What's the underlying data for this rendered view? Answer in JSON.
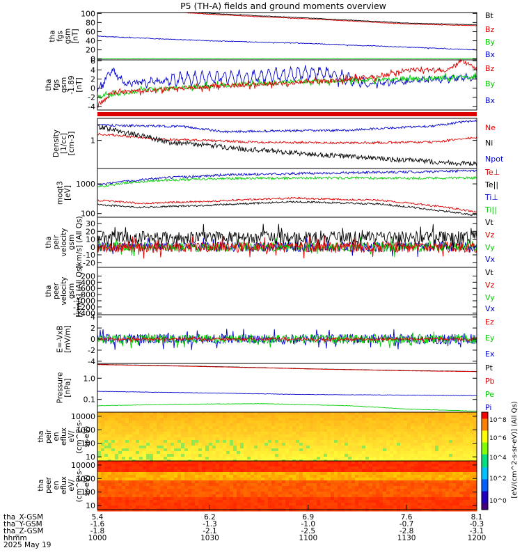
{
  "title": "P5 (TH-A) fields and ground moments overview",
  "colors": {
    "black": "#000000",
    "red": "#dd0000",
    "green": "#00cc00",
    "blue": "#0000cc"
  },
  "chart_data": {
    "type": "line",
    "panels": [
      {
        "id": "fgs",
        "ylabel": [
          "tha",
          "fgs",
          "gsm",
          "[nT]"
        ],
        "ylim": [
          -2,
          102
        ],
        "yticks": [
          0,
          20,
          40,
          60,
          80,
          100
        ],
        "ytick_labels": [
          "0",
          "20",
          "40",
          "60",
          "80",
          "100"
        ],
        "legend": [
          "Bt",
          "Bz",
          "By",
          "Bx"
        ],
        "series": [
          {
            "name": "Bt",
            "color": "black",
            "points": [
              [
                5.4,
                118
              ],
              [
                6.2,
                100
              ],
              [
                6.9,
                90
              ],
              [
                7.6,
                79
              ],
              [
                8.1,
                75
              ]
            ],
            "noise": 0.6
          },
          {
            "name": "Bz",
            "color": "red",
            "points": [
              [
                5.4,
                116
              ],
              [
                6.2,
                98
              ],
              [
                6.9,
                88
              ],
              [
                7.6,
                77
              ],
              [
                8.1,
                73
              ]
            ],
            "noise": 0.6
          },
          {
            "name": "By",
            "color": "blue",
            "points": [
              [
                5.4,
                50
              ],
              [
                5.7,
                46
              ],
              [
                6.2,
                40
              ],
              [
                6.9,
                34
              ],
              [
                7.6,
                26
              ],
              [
                8.1,
                20
              ]
            ],
            "noise": 0.8
          },
          {
            "name": "Bx",
            "color": "green",
            "points": [
              [
                5.4,
                0.5
              ],
              [
                8.1,
                1
              ]
            ],
            "noise": 0.3
          }
        ]
      },
      {
        "id": "fgm",
        "ylabel": [
          "tha",
          "fgs",
          "gsm",
          "-1.89",
          "[nT]"
        ],
        "ylim": [
          -4.8,
          6.2
        ],
        "yticks": [
          -4,
          -2,
          0,
          2,
          4,
          6
        ],
        "ytick_labels": [
          "-4",
          "-2",
          "0",
          "2",
          "4",
          "6"
        ],
        "legend": [
          "Bz",
          "By",
          "Bx"
        ],
        "series": [
          {
            "name": "Bx",
            "color": "blue",
            "points": [
              [
                5.4,
                -1
              ],
              [
                5.5,
                4
              ],
              [
                5.6,
                1
              ],
              [
                6.0,
                2
              ],
              [
                6.5,
                2.5
              ],
              [
                7.0,
                3.5
              ],
              [
                7.3,
                1
              ],
              [
                7.6,
                1.5
              ],
              [
                8.1,
                2.5
              ]
            ],
            "noise": 0.6,
            "wave": 1.2
          },
          {
            "name": "By",
            "color": "green",
            "points": [
              [
                5.4,
                -2
              ],
              [
                5.7,
                -0.5
              ],
              [
                6.2,
                0.5
              ],
              [
                6.9,
                1.5
              ],
              [
                7.6,
                2
              ],
              [
                8.1,
                2.5
              ]
            ],
            "noise": 0.5
          },
          {
            "name": "Bz",
            "color": "red",
            "points": [
              [
                5.4,
                -4
              ],
              [
                5.5,
                -1
              ],
              [
                6.0,
                0
              ],
              [
                6.6,
                1
              ],
              [
                7.0,
                1.5
              ],
              [
                7.4,
                2.5
              ],
              [
                7.6,
                4
              ],
              [
                7.9,
                4
              ],
              [
                8.0,
                6
              ],
              [
                8.1,
                4
              ]
            ],
            "noise": 0.5
          }
        ]
      },
      {
        "id": "density",
        "ylabel": [
          "Density",
          "[1/cc]",
          "[cm-3]"
        ],
        "ylim": [
          0.17,
          4.0
        ],
        "log": true,
        "yticks": [
          1
        ],
        "ytick_labels": [
          "1"
        ],
        "legend": [
          "Ne",
          "Ni",
          "Npot"
        ],
        "series": [
          {
            "name": "Npot",
            "color": "blue",
            "points": [
              [
                5.4,
                2.6
              ],
              [
                6.0,
                2.4
              ],
              [
                6.3,
                1.7
              ],
              [
                6.6,
                1.8
              ],
              [
                7.2,
                1.9
              ],
              [
                7.8,
                2.5
              ],
              [
                8.1,
                3.5
              ]
            ],
            "noise": 0.03
          },
          {
            "name": "Ni",
            "color": "red",
            "points": [
              [
                5.4,
                1.5
              ],
              [
                5.8,
                1.1
              ],
              [
                6.5,
                0.9
              ],
              [
                7.2,
                0.85
              ],
              [
                7.8,
                0.9
              ],
              [
                8.1,
                1.2
              ]
            ],
            "noise": 0.03
          },
          {
            "name": "Ne",
            "color": "black",
            "points": [
              [
                5.4,
                2.4
              ],
              [
                5.6,
                1.6
              ],
              [
                5.9,
                0.9
              ],
              [
                6.4,
                0.6
              ],
              [
                6.9,
                0.42
              ],
              [
                7.5,
                0.3
              ],
              [
                8.1,
                0.22
              ]
            ],
            "noise": 0.07
          }
        ]
      },
      {
        "id": "temp",
        "ylabel": [
          "moqt3",
          "[eV]"
        ],
        "ylim": [
          75,
          3300
        ],
        "log": true,
        "yticks": [
          100,
          1000
        ],
        "ytick_labels": [
          "100",
          "1000"
        ],
        "legend": [
          "Te⊥",
          "Te||",
          "Ti⊥",
          "Ti||"
        ],
        "series": [
          {
            "name": "Ti⊥",
            "color": "blue",
            "points": [
              [
                5.4,
                900
              ],
              [
                5.8,
                1500
              ],
              [
                6.3,
                2000
              ],
              [
                7.0,
                2300
              ],
              [
                7.6,
                2500
              ],
              [
                8.1,
                2800
              ]
            ],
            "noise": 0.04
          },
          {
            "name": "Ti||",
            "color": "green",
            "points": [
              [
                5.4,
                800
              ],
              [
                5.8,
                1300
              ],
              [
                6.3,
                1500
              ],
              [
                7.0,
                1600
              ],
              [
                7.6,
                1550
              ],
              [
                8.1,
                1600
              ]
            ],
            "noise": 0.04
          },
          {
            "name": "Te⊥",
            "color": "red",
            "points": [
              [
                5.4,
                280
              ],
              [
                5.7,
                220
              ],
              [
                6.2,
                260
              ],
              [
                6.8,
                330
              ],
              [
                7.4,
                280
              ],
              [
                7.8,
                180
              ],
              [
                8.1,
                110
              ]
            ],
            "noise": 0.03
          },
          {
            "name": "Te||",
            "color": "black",
            "points": [
              [
                5.4,
                200
              ],
              [
                5.7,
                160
              ],
              [
                6.2,
                190
              ],
              [
                6.8,
                250
              ],
              [
                7.4,
                210
              ],
              [
                7.8,
                130
              ],
              [
                8.1,
                85
              ]
            ],
            "noise": 0.03
          }
        ]
      },
      {
        "id": "peir",
        "ylabel": [
          "tha",
          "peir",
          "velocity",
          "gsm",
          "[km/s] (All Qs)"
        ],
        "ylim": [
          -26,
          38
        ],
        "yticks": [
          -20,
          -10,
          0,
          10,
          20,
          30
        ],
        "ytick_labels": [
          "-20",
          "-10",
          "0",
          "10",
          "20",
          "30"
        ],
        "legend": [
          "Vt",
          "Vz",
          "Vy",
          "Vx"
        ],
        "series": [
          {
            "name": "Vx",
            "color": "blue",
            "points": [
              [
                5.4,
                0
              ],
              [
                8.1,
                0
              ]
            ],
            "noise": 6
          },
          {
            "name": "Vy",
            "color": "green",
            "points": [
              [
                5.4,
                0
              ],
              [
                8.1,
                0
              ]
            ],
            "noise": 6
          },
          {
            "name": "Vt",
            "color": "black",
            "points": [
              [
                5.4,
                12
              ],
              [
                8.1,
                12
              ]
            ],
            "noise": 8
          },
          {
            "name": "Vz",
            "color": "red",
            "points": [
              [
                5.4,
                0
              ],
              [
                8.1,
                0
              ]
            ],
            "noise": 7
          }
        ]
      },
      {
        "id": "peer",
        "ylabel": [
          "tha",
          "peer",
          "velocity",
          "gsm",
          "[km/s] (All Qs)"
        ],
        "ylim": [
          -1450,
          80
        ],
        "yticks": [
          -1400,
          -1200,
          -1000,
          -800,
          -600,
          -400,
          -200
        ],
        "ytick_labels": [
          "-1400",
          "-1200",
          "-1000",
          "-800",
          "-600",
          "-400",
          "-200"
        ],
        "legend": [
          "Vt",
          "Vz",
          "Vy",
          "Vx"
        ],
        "series": []
      },
      {
        "id": "efield",
        "ylabel": [
          "E=-VxB",
          "[mV/m]"
        ],
        "ylim": [
          -4.4,
          4.4
        ],
        "yticks": [
          -4,
          -2,
          0,
          2,
          4
        ],
        "ytick_labels": [
          "-4",
          "-2",
          "0",
          "2",
          "4"
        ],
        "legend": [
          "Ez",
          "Ey",
          "Ex"
        ],
        "series": [
          {
            "name": "Ex",
            "color": "blue",
            "points": [
              [
                5.4,
                0
              ],
              [
                8.1,
                0
              ]
            ],
            "noise": 0.9
          },
          {
            "name": "Ey",
            "color": "green",
            "points": [
              [
                5.4,
                0
              ],
              [
                8.1,
                0
              ]
            ],
            "noise": 0.8
          },
          {
            "name": "Ez",
            "color": "red",
            "points": [
              [
                5.4,
                0
              ],
              [
                8.1,
                0
              ]
            ],
            "noise": 0.25
          }
        ]
      },
      {
        "id": "pressure",
        "ylabel": [
          "Pressure",
          "[nPa]"
        ],
        "ylim": [
          0.025,
          5.0
        ],
        "log": true,
        "yticks": [
          0.1,
          1
        ],
        "ytick_labels": [
          "0.1",
          "1.0"
        ],
        "legend": [
          "Pt",
          "Pb",
          "Pe",
          "Pi"
        ],
        "series": [
          {
            "name": "Pt",
            "color": "black",
            "points": [
              [
                5.4,
                4.5
              ],
              [
                6.2,
                3.6
              ],
              [
                6.9,
                2.8
              ],
              [
                7.6,
                2.3
              ],
              [
                8.1,
                2.1
              ]
            ],
            "noise": 0.005
          },
          {
            "name": "Pb",
            "color": "red",
            "points": [
              [
                5.4,
                4.4
              ],
              [
                6.2,
                3.5
              ],
              [
                6.9,
                2.75
              ],
              [
                7.6,
                2.25
              ],
              [
                8.1,
                2.05
              ]
            ],
            "noise": 0.005
          },
          {
            "name": "Pi",
            "color": "blue",
            "points": [
              [
                5.4,
                0.24
              ],
              [
                6.2,
                0.2
              ],
              [
                6.9,
                0.17
              ],
              [
                7.6,
                0.16
              ],
              [
                8.1,
                0.15
              ]
            ],
            "noise": 0.01
          },
          {
            "name": "Pe",
            "color": "green",
            "points": [
              [
                5.4,
                0.05
              ],
              [
                6.0,
                0.06
              ],
              [
                6.6,
                0.063
              ],
              [
                7.2,
                0.05
              ],
              [
                7.6,
                0.035
              ],
              [
                8.1,
                0.028
              ]
            ],
            "noise": 0.01
          }
        ]
      },
      {
        "id": "peir_en",
        "ylabel": [
          "tha",
          "peir",
          "en",
          "eflux",
          "eV/",
          "(cm^2-s-",
          "sr-eV)"
        ],
        "ylim": [
          5,
          20000
        ],
        "log": true,
        "yticks": [
          10,
          100,
          1000,
          10000
        ],
        "ytick_labels": [
          "10",
          "100",
          "1000",
          "10000"
        ],
        "spectrogram": "ion"
      },
      {
        "id": "peer_en",
        "ylabel": [
          "tha",
          "peer",
          "en",
          "eflux",
          "eV/",
          "(cm^2-s-",
          "sr-eV)"
        ],
        "ylim": [
          5,
          20000
        ],
        "log": true,
        "yticks": [
          10,
          100,
          1000,
          10000
        ],
        "ytick_labels": [
          "10",
          "100",
          "1000",
          "10000"
        ],
        "spectrogram": "electron"
      }
    ],
    "colorbar": {
      "label": "[eV/(cm^2-s-sr-eV)] (All Qs)",
      "ticks": [
        "10^0",
        "10^2",
        "10^4",
        "10^6",
        "10^8"
      ]
    },
    "xaxis": {
      "xlim": [
        5.4,
        8.1
      ],
      "rows": [
        {
          "label": "tha_X-GSM",
          "values": [
            "5.4",
            "6.2",
            "6.9",
            "7.6",
            "8.1"
          ]
        },
        {
          "label": "tha_Y-GSM",
          "values": [
            "-1.6",
            "-1.3",
            "-1.0",
            "-0.7",
            "-0.3"
          ]
        },
        {
          "label": "tha_Z-GSM",
          "values": [
            "-1.8",
            "-2.1",
            "-2.5",
            "-2.8",
            "-3.1"
          ]
        },
        {
          "label": "hhmm",
          "values": [
            "1000",
            "1030",
            "1100",
            "1130",
            "1200"
          ]
        }
      ],
      "date": "2025 May 19"
    }
  }
}
